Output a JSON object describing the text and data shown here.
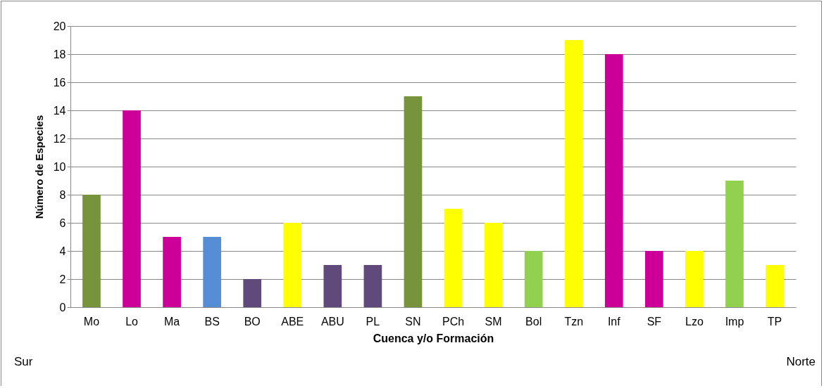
{
  "chart_data": {
    "type": "bar",
    "xlabel": "Cuenca y/o Formación",
    "ylabel": "Número de Especies",
    "categories": [
      "Mo",
      "Lo",
      "Ma",
      "BS",
      "BO",
      "ABE",
      "ABU",
      "PL",
      "SN",
      "PCh",
      "SM",
      "Bol",
      "Tzn",
      "Inf",
      "SF",
      "Lzo",
      "Imp",
      "TP"
    ],
    "values": [
      8,
      14,
      5,
      5,
      2,
      6,
      3,
      3,
      15,
      7,
      6,
      4,
      19,
      18,
      4,
      4,
      9,
      3
    ],
    "colors": [
      "#77933c",
      "#cc0099",
      "#cc0099",
      "#558ed5",
      "#604a7b",
      "#ffff00",
      "#604a7b",
      "#604a7b",
      "#77933c",
      "#ffff00",
      "#ffff00",
      "#92d050",
      "#ffff00",
      "#cc0099",
      "#cc0099",
      "#ffff00",
      "#92d050",
      "#ffff00"
    ],
    "ylim": [
      0,
      20
    ],
    "yticks": [
      0,
      2,
      4,
      6,
      8,
      10,
      12,
      14,
      16,
      18,
      20
    ],
    "grid": "y",
    "annotations": [
      "Sur",
      "Norte"
    ]
  }
}
